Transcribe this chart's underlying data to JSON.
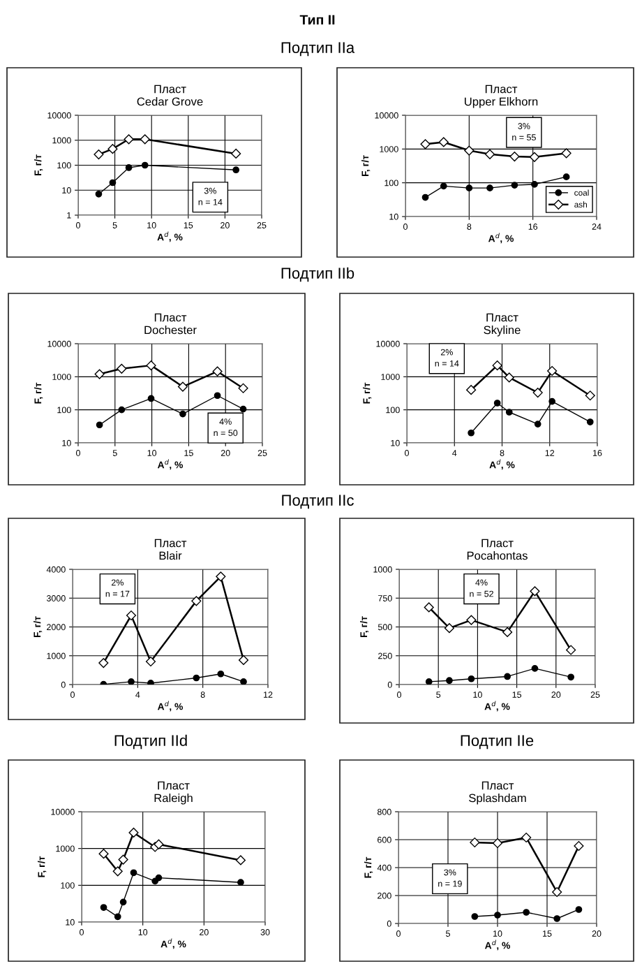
{
  "chart_data": [
    {
      "type": "line",
      "title": "Пласт\nCedar Grove",
      "xlabel": "A$^{d}$, %",
      "ylabel": "F, г/т",
      "log": true,
      "grid": true,
      "xlim": [
        0,
        25
      ],
      "xticks": [
        0,
        5,
        10,
        15,
        20,
        25
      ],
      "ylim": [
        1,
        10000
      ],
      "yticks": [
        1,
        10,
        100,
        1000,
        10000
      ],
      "annotations": [
        "Тип II",
        "Подтип IIa",
        "3%\nn = 14"
      ],
      "series": [
        {
          "color": "#000000",
          "marker": "circle",
          "x": [
            2.8,
            4.7,
            6.9,
            9.1,
            21.5
          ],
          "values": [
            7,
            20,
            80,
            100,
            65
          ]
        },
        {
          "color": "#000000",
          "marker": "diamond",
          "x": [
            2.8,
            4.7,
            6.9,
            9.1,
            21.5
          ],
          "values": [
            270,
            450,
            1100,
            1100,
            290
          ]
        }
      ]
    },
    {
      "type": "line",
      "title": "Пласт\nUpper Elkhorn",
      "xlabel": "A$^{d}$, %",
      "ylabel": "F, г/т",
      "log": true,
      "grid": true,
      "legend": "bottom right",
      "xlim": [
        0,
        24
      ],
      "xticks": [
        0,
        8,
        16,
        24
      ],
      "ylim": [
        10,
        10000
      ],
      "yticks": [
        10,
        100,
        1000,
        10000
      ],
      "annotations": [
        "3%\nn = 55"
      ],
      "series": [
        {
          "name": "coal",
          "color": "#000000",
          "marker": "circle",
          "x": [
            2.5,
            4.8,
            8,
            10.6,
            13.7,
            16.2,
            20.2
          ],
          "values": [
            37,
            80,
            70,
            70,
            85,
            90,
            150
          ]
        },
        {
          "name": "ash",
          "color": "#000000",
          "marker": "diamond",
          "x": [
            2.5,
            4.8,
            8,
            10.6,
            13.7,
            16.2,
            20.2
          ],
          "values": [
            1400,
            1600,
            900,
            700,
            600,
            580,
            750
          ]
        }
      ]
    },
    {
      "type": "line",
      "title": "Пласт\nDochester",
      "xlabel": "A$^{d}$, %",
      "ylabel": "F, г/т",
      "log": true,
      "grid": true,
      "xlim": [
        0,
        25
      ],
      "xticks": [
        0,
        5,
        10,
        15,
        20,
        25
      ],
      "ylim": [
        10,
        10000
      ],
      "yticks": [
        10,
        100,
        1000,
        10000
      ],
      "annotations": [
        "Подтип IIb",
        "4%\nn = 50"
      ],
      "series": [
        {
          "color": "#000000",
          "marker": "circle",
          "x": [
            2.9,
            5.9,
            9.9,
            14.2,
            18.9,
            22.4
          ],
          "values": [
            35,
            100,
            220,
            75,
            270,
            105
          ]
        },
        {
          "color": "#000000",
          "marker": "diamond",
          "x": [
            2.9,
            5.9,
            9.9,
            14.2,
            18.9,
            22.4
          ],
          "values": [
            1200,
            1750,
            2200,
            500,
            1450,
            450
          ]
        }
      ]
    },
    {
      "type": "line",
      "title": "Пласт\nSkyline",
      "xlabel": "A$^{d}$, %",
      "ylabel": "F, г/т",
      "log": true,
      "grid": true,
      "xlim": [
        0,
        16
      ],
      "xticks": [
        0,
        4,
        8,
        12,
        16
      ],
      "ylim": [
        10,
        10000
      ],
      "yticks": [
        10,
        100,
        1000,
        10000
      ],
      "annotations": [
        "2%\nn = 14"
      ],
      "series": [
        {
          "color": "#000000",
          "marker": "circle",
          "x": [
            5.4,
            7.6,
            8.6,
            11.0,
            12.2,
            15.4
          ],
          "values": [
            20,
            160,
            85,
            37,
            180,
            43
          ]
        },
        {
          "color": "#000000",
          "marker": "diamond",
          "x": [
            5.4,
            7.6,
            8.6,
            11.0,
            12.2,
            15.4
          ],
          "values": [
            400,
            2200,
            950,
            330,
            1500,
            270
          ]
        }
      ]
    },
    {
      "type": "line",
      "title": "Пласт\nBlair",
      "xlabel": "A$^{d}$, %",
      "ylabel": "F, г/т",
      "grid": true,
      "xlim": [
        0,
        12
      ],
      "xticks": [
        0,
        4,
        8,
        12
      ],
      "ylim": [
        0,
        4000
      ],
      "yticks": [
        0,
        1000,
        2000,
        3000,
        4000
      ],
      "annotations": [
        "Подтип IIc",
        "2%\nn = 17"
      ],
      "series": [
        {
          "color": "#000000",
          "marker": "circle",
          "x": [
            1.9,
            3.6,
            4.8,
            7.6,
            9.1,
            10.5
          ],
          "values": [
            10,
            100,
            50,
            230,
            370,
            100
          ]
        },
        {
          "color": "#000000",
          "marker": "diamond",
          "x": [
            1.9,
            3.6,
            4.8,
            7.6,
            9.1,
            10.5
          ],
          "values": [
            750,
            2400,
            800,
            2900,
            3750,
            850
          ]
        }
      ]
    },
    {
      "type": "line",
      "title": "Пласт\nPocahontas",
      "xlabel": "A$^{d}$, %",
      "ylabel": "F, г/т",
      "grid": true,
      "xlim": [
        0,
        25
      ],
      "xticks": [
        0,
        5,
        10,
        15,
        20,
        25
      ],
      "ylim": [
        0,
        1000
      ],
      "yticks": [
        0,
        250,
        500,
        750,
        1000
      ],
      "annotations": [
        "4%\nn = 52"
      ],
      "series": [
        {
          "color": "#000000",
          "marker": "circle",
          "x": [
            3.8,
            6.4,
            9.2,
            13.8,
            17.3,
            21.9
          ],
          "values": [
            25,
            35,
            50,
            70,
            140,
            65
          ]
        },
        {
          "color": "#000000",
          "marker": "diamond",
          "x": [
            3.8,
            6.4,
            9.2,
            13.8,
            17.3,
            21.9
          ],
          "values": [
            670,
            490,
            560,
            455,
            810,
            300
          ]
        }
      ]
    },
    {
      "type": "line",
      "title": "Пласт\nRaleigh",
      "xlabel": "A$^{d}$, %",
      "ylabel": "F, г/т",
      "log": true,
      "grid": true,
      "xlim": [
        0,
        30
      ],
      "xticks": [
        0,
        10,
        20,
        30
      ],
      "ylim": [
        10,
        10000
      ],
      "yticks": [
        10,
        100,
        1000,
        10000
      ],
      "annotations": [
        "Подтип IId"
      ],
      "series": [
        {
          "color": "#000000",
          "marker": "circle",
          "x": [
            3.6,
            5.9,
            6.8,
            8.5,
            12.0,
            12.6,
            26
          ],
          "values": [
            25,
            14,
            35,
            220,
            130,
            160,
            120
          ]
        },
        {
          "color": "#000000",
          "marker": "diamond",
          "x": [
            3.6,
            5.9,
            6.8,
            8.5,
            12.0,
            12.6,
            26
          ],
          "values": [
            720,
            240,
            500,
            2700,
            1100,
            1300,
            480
          ]
        }
      ]
    },
    {
      "type": "line",
      "title": "Пласт\nSplashdam",
      "xlabel": "A$^{d}$, %",
      "ylabel": "F, г/т",
      "grid": true,
      "xlim": [
        0,
        20
      ],
      "xticks": [
        0,
        5,
        10,
        15,
        20
      ],
      "ylim": [
        0,
        800
      ],
      "yticks": [
        0,
        200,
        400,
        600,
        800
      ],
      "annotations": [
        "Подтип IIe",
        "3%\nn = 19"
      ],
      "series": [
        {
          "color": "#000000",
          "marker": "circle",
          "x": [
            7.7,
            10.0,
            12.9,
            16.0,
            18.2
          ],
          "values": [
            50,
            60,
            80,
            35,
            100
          ]
        },
        {
          "color": "#000000",
          "marker": "diamond",
          "x": [
            7.7,
            10.0,
            12.9,
            16.0,
            18.2
          ],
          "values": [
            580,
            575,
            615,
            225,
            555
          ]
        }
      ]
    }
  ]
}
